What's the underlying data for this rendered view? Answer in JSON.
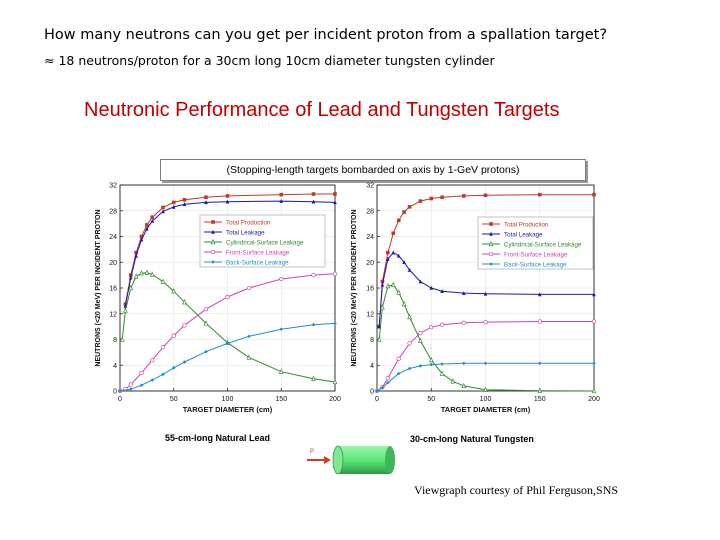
{
  "slide": {
    "title": "How many neutrons can you get per incident proton from a spallation target?",
    "subtitle": "≈ 18 neutrons/proton for a 30cm long 10cm diameter tungsten cylinder",
    "figure_title": "Neutronic Performance of Lead and Tungsten Targets",
    "figure_subtitle": "(Stopping-length targets bombarded on axis by 1-GeV protons)",
    "courtesy": "Viewgraph courtesy of Phil Ferguson,SNS",
    "beam_label": "P"
  },
  "colors": {
    "total_production": "#c0392b",
    "total_leakage": "#1a1aa6",
    "cylindrical_surface_leakage": "#2e8b2e",
    "front_surface_leakage": "#cc44aa",
    "back_surface_leakage": "#1e90c8",
    "figure_title": "#c00000",
    "target_cylinder": "#5ee87a"
  },
  "chart_data": [
    {
      "type": "line",
      "caption": "55-cm-long Natural Lead",
      "xlabel": "TARGET DIAMETER (cm)",
      "ylabel": "NEUTRONS (<20 MeV) PER INCIDENT PROTON",
      "xlim": [
        0,
        200
      ],
      "ylim": [
        0,
        32
      ],
      "xticks": [
        0,
        50,
        100,
        150,
        200
      ],
      "yticks": [
        0,
        4,
        8,
        12,
        16,
        20,
        24,
        28,
        32
      ],
      "legend": "upper-center",
      "series": [
        {
          "name": "Total Production",
          "color_key": "total_production",
          "marker": "square",
          "x": [
            5,
            10,
            15,
            20,
            25,
            30,
            40,
            50,
            60,
            80,
            100,
            150,
            180,
            200
          ],
          "y": [
            13.5,
            18,
            21.5,
            24,
            25.8,
            27,
            28.5,
            29.3,
            29.7,
            30.1,
            30.3,
            30.5,
            30.6,
            30.6
          ]
        },
        {
          "name": "Total Leakage",
          "color_key": "total_leakage",
          "marker": "triangle",
          "x": [
            5,
            10,
            15,
            20,
            25,
            30,
            40,
            50,
            60,
            80,
            100,
            150,
            180,
            200
          ],
          "y": [
            13.2,
            17.6,
            21,
            23.5,
            25.2,
            26.4,
            27.9,
            28.6,
            29,
            29.3,
            29.4,
            29.5,
            29.4,
            29.3
          ]
        },
        {
          "name": "Cylindrical-Surface Leakage",
          "color_key": "cylindrical_surface_leakage",
          "marker": "triangle-open",
          "x": [
            2,
            5,
            10,
            15,
            20,
            25,
            30,
            40,
            50,
            60,
            80,
            100,
            120,
            150,
            180,
            200
          ],
          "y": [
            8,
            12.5,
            16,
            17.8,
            18.3,
            18.4,
            18.1,
            17,
            15.5,
            13.8,
            10.5,
            7.5,
            5.2,
            3,
            1.9,
            1.4
          ]
        },
        {
          "name": "Front-Surface Leakage",
          "color_key": "front_surface_leakage",
          "marker": "circle-open",
          "x": [
            0,
            5,
            10,
            20,
            30,
            40,
            50,
            60,
            80,
            100,
            120,
            150,
            180,
            200
          ],
          "y": [
            0,
            0.3,
            1,
            2.8,
            4.8,
            6.8,
            8.6,
            10.2,
            12.7,
            14.6,
            16,
            17.4,
            18,
            18.2
          ]
        },
        {
          "name": "Back-Surface Leakage",
          "color_key": "back_surface_leakage",
          "marker": "diamond",
          "x": [
            0,
            10,
            20,
            30,
            40,
            50,
            60,
            80,
            100,
            120,
            150,
            180,
            200
          ],
          "y": [
            0,
            0.3,
            0.9,
            1.7,
            2.6,
            3.6,
            4.5,
            6.1,
            7.4,
            8.5,
            9.6,
            10.3,
            10.5
          ]
        }
      ]
    },
    {
      "type": "line",
      "caption": "30-cm-long Natural Tungsten",
      "xlabel": "TARGET DIAMETER (cm)",
      "ylabel": "NEUTRONS (<20 MeV) PER INCIDENT PROTON",
      "xlim": [
        0,
        200
      ],
      "ylim": [
        0,
        32
      ],
      "xticks": [
        0,
        50,
        100,
        150,
        200
      ],
      "yticks": [
        0,
        4,
        8,
        12,
        16,
        20,
        24,
        28,
        32
      ],
      "legend": "right",
      "series": [
        {
          "name": "Total Production",
          "color_key": "total_production",
          "marker": "square",
          "x": [
            2,
            5,
            10,
            15,
            20,
            25,
            30,
            40,
            50,
            60,
            80,
            100,
            150,
            200
          ],
          "y": [
            10,
            17,
            21.5,
            24.5,
            26.5,
            27.8,
            28.6,
            29.5,
            29.9,
            30.1,
            30.3,
            30.4,
            30.5,
            30.5
          ]
        },
        {
          "name": "Total Leakage",
          "color_key": "total_leakage",
          "marker": "triangle",
          "x": [
            2,
            5,
            10,
            15,
            20,
            25,
            30,
            40,
            50,
            60,
            80,
            100,
            150,
            200
          ],
          "y": [
            10,
            16.5,
            20.5,
            21.5,
            21,
            20,
            18.8,
            17,
            16,
            15.5,
            15.2,
            15.1,
            15,
            15
          ]
        },
        {
          "name": "Cylindrical-Surface Leakage",
          "color_key": "cylindrical_surface_leakage",
          "marker": "triangle-open",
          "x": [
            2,
            5,
            10,
            15,
            20,
            25,
            30,
            40,
            50,
            60,
            70,
            80,
            100,
            150,
            200
          ],
          "y": [
            8,
            13,
            16.3,
            16.5,
            15.3,
            13.5,
            11.5,
            7.8,
            4.8,
            2.7,
            1.5,
            0.8,
            0.2,
            0.05,
            0
          ]
        },
        {
          "name": "Front-Surface Leakage",
          "color_key": "front_surface_leakage",
          "marker": "circle-open",
          "x": [
            0,
            5,
            10,
            20,
            30,
            40,
            50,
            60,
            80,
            100,
            150,
            200
          ],
          "y": [
            0,
            0.6,
            2,
            5,
            7.4,
            9,
            9.9,
            10.3,
            10.6,
            10.7,
            10.8,
            10.8
          ]
        },
        {
          "name": "Back-Surface Leakage",
          "color_key": "back_surface_leakage",
          "marker": "diamond",
          "x": [
            0,
            5,
            10,
            20,
            30,
            40,
            50,
            60,
            80,
            100,
            150,
            200
          ],
          "y": [
            0,
            0.5,
            1.3,
            2.7,
            3.5,
            3.9,
            4.1,
            4.2,
            4.3,
            4.3,
            4.3,
            4.3
          ]
        }
      ]
    }
  ]
}
